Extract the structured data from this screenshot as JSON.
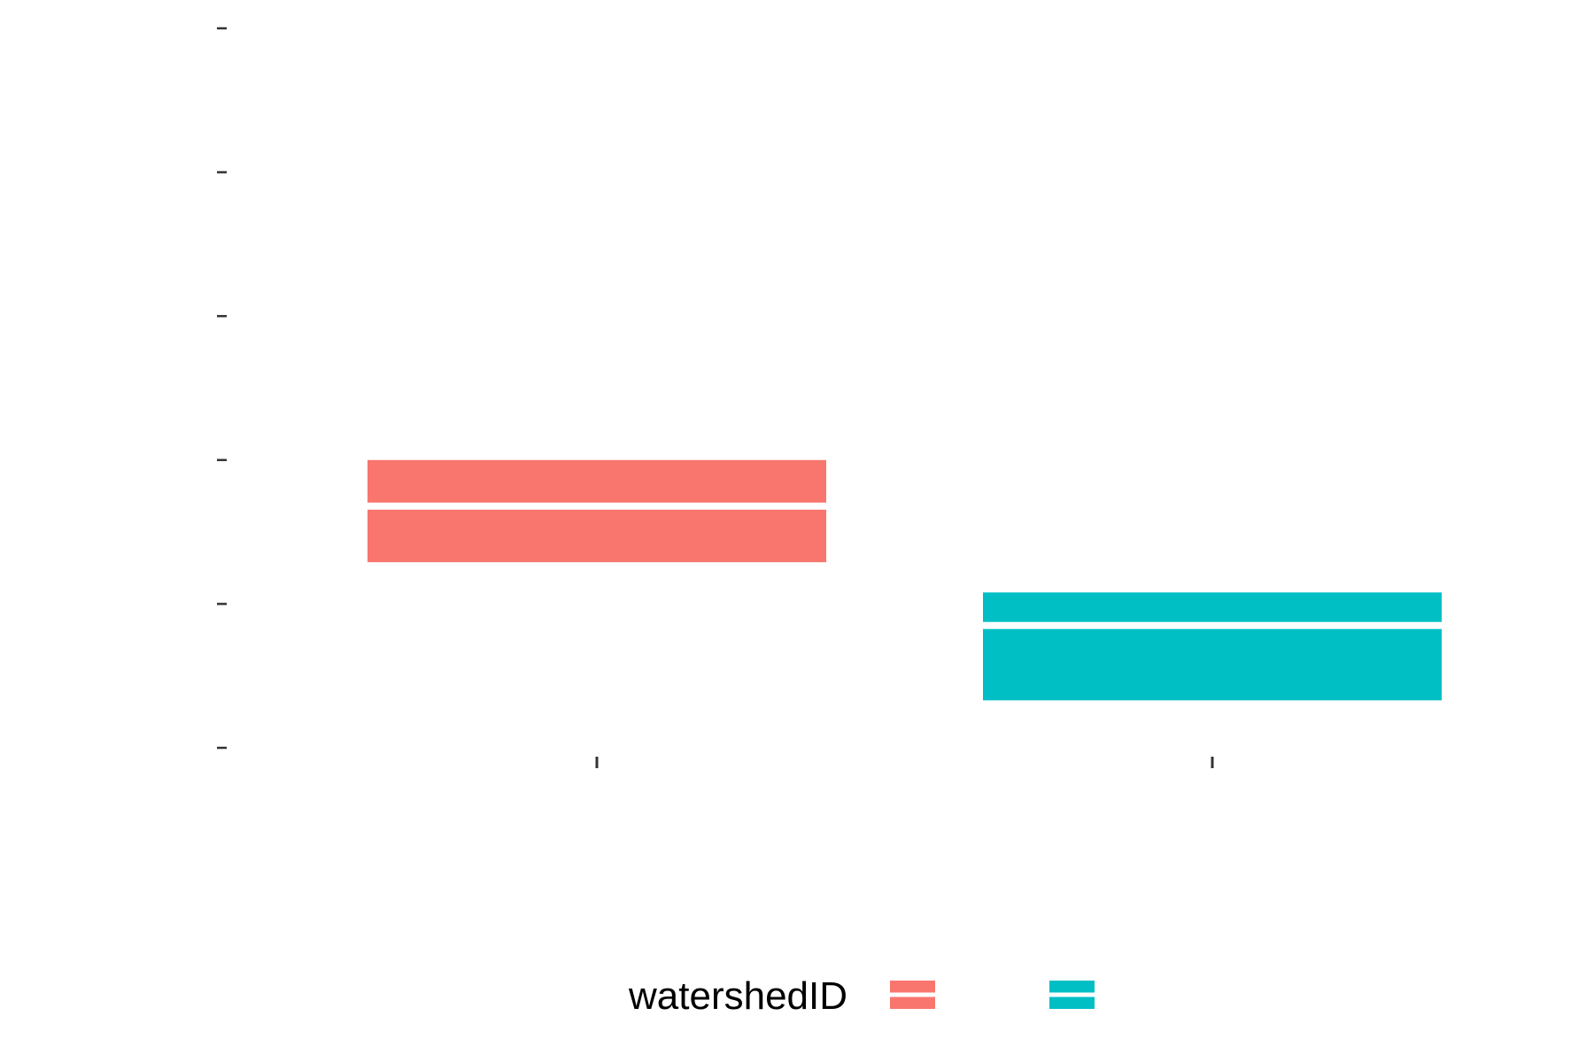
{
  "chart_data": {
    "type": "box",
    "title": "",
    "xlabel": "",
    "ylabel": "",
    "ylim": [
      0,
      5
    ],
    "yticks": [
      0,
      1,
      2,
      3,
      4,
      5
    ],
    "categories": [
      "",
      ""
    ],
    "grid": false,
    "legend": {
      "title": "watershedID",
      "placement": "bottom",
      "entries": [
        "",
        ""
      ]
    },
    "series": [
      {
        "q1": 1.29,
        "median": 1.68,
        "q3": 2.0,
        "color": "#F8766D"
      },
      {
        "q1": 0.33,
        "median": 0.85,
        "q3": 1.08,
        "color": "#00BFC4"
      }
    ]
  }
}
